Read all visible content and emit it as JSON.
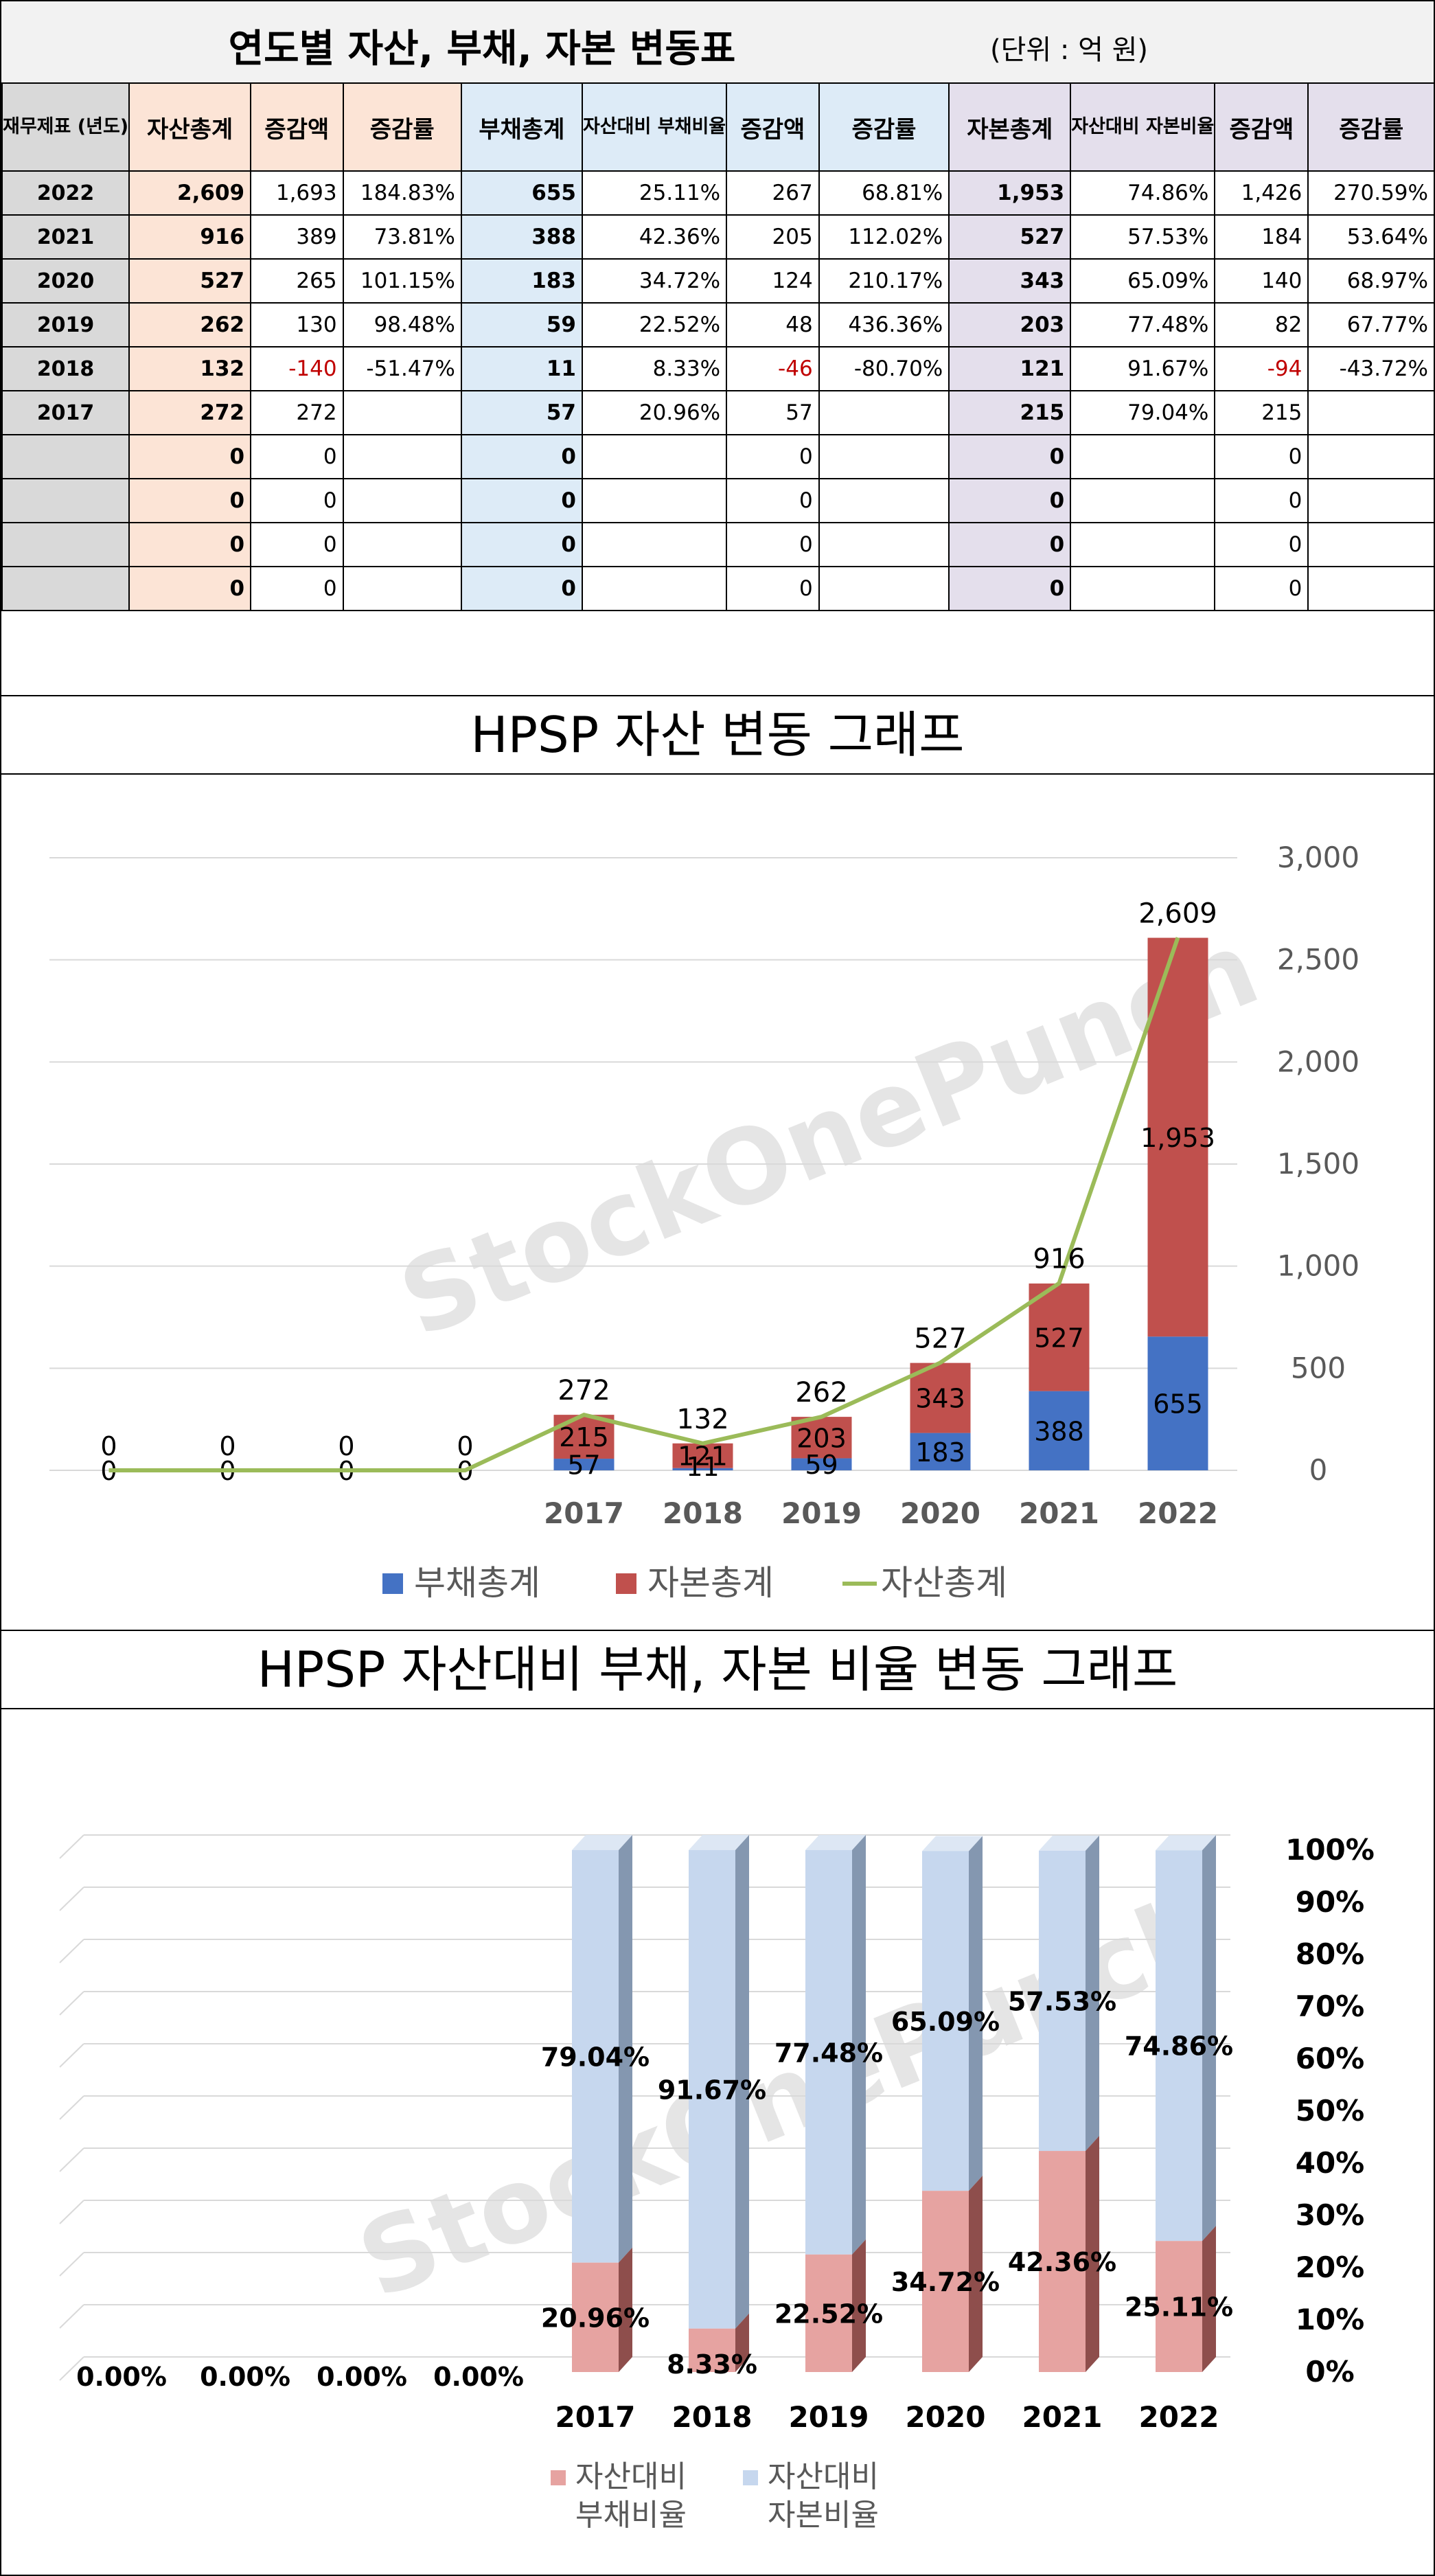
{
  "table": {
    "title": "연도별 자산, 부채, 자본 변동표",
    "unit": "(단위 : 억 원)",
    "headers": [
      "재무제표 (년도)",
      "자산총계",
      "증감액",
      "증감률",
      "부채총계",
      "자산대비 부채비율",
      "증감액",
      "증감률",
      "자본총계",
      "자산대비 자본비율",
      "증감액",
      "증감률"
    ],
    "rows": [
      [
        "2022",
        "2,609",
        "1,693",
        "184.83%",
        "655",
        "25.11%",
        "267",
        "68.81%",
        "1,953",
        "74.86%",
        "1,426",
        "270.59%"
      ],
      [
        "2021",
        "916",
        "389",
        "73.81%",
        "388",
        "42.36%",
        "205",
        "112.02%",
        "527",
        "57.53%",
        "184",
        "53.64%"
      ],
      [
        "2020",
        "527",
        "265",
        "101.15%",
        "183",
        "34.72%",
        "124",
        "210.17%",
        "343",
        "65.09%",
        "140",
        "68.97%"
      ],
      [
        "2019",
        "262",
        "130",
        "98.48%",
        "59",
        "22.52%",
        "48",
        "436.36%",
        "203",
        "77.48%",
        "82",
        "67.77%"
      ],
      [
        "2018",
        "132",
        "-140",
        "-51.47%",
        "11",
        "8.33%",
        "-46",
        "-80.70%",
        "121",
        "91.67%",
        "-94",
        "-43.72%"
      ],
      [
        "2017",
        "272",
        "272",
        "",
        "57",
        "20.96%",
        "57",
        "",
        "215",
        "79.04%",
        "215",
        ""
      ],
      [
        "",
        "0",
        "0",
        "",
        "0",
        "",
        "0",
        "",
        "0",
        "",
        "0",
        ""
      ],
      [
        "",
        "0",
        "0",
        "",
        "0",
        "",
        "0",
        "",
        "0",
        "",
        "0",
        ""
      ],
      [
        "",
        "0",
        "0",
        "",
        "0",
        "",
        "0",
        "",
        "0",
        "",
        "0",
        ""
      ],
      [
        "",
        "0",
        "0",
        "",
        "0",
        "",
        "0",
        "",
        "0",
        "",
        "0",
        ""
      ]
    ]
  },
  "watermark": "StockOnePunch",
  "colors": {
    "liability": "#4472c4",
    "equity": "#c0504d",
    "assets_line": "#9bbb59",
    "liability_ratio": "#e6a3a1",
    "equity_ratio": "#c6d7ee"
  },
  "chart_data": [
    {
      "type": "bar",
      "stacked": true,
      "title": "HPSP 자산 변동 그래프",
      "categories": [
        "",
        "",
        "",
        "",
        "2017",
        "2018",
        "2019",
        "2020",
        "2021",
        "2022"
      ],
      "series": [
        {
          "name": "부채총계",
          "kind": "bar",
          "values": [
            0,
            0,
            0,
            0,
            57,
            11,
            59,
            183,
            388,
            655
          ]
        },
        {
          "name": "자본총계",
          "kind": "bar",
          "values": [
            0,
            0,
            0,
            0,
            215,
            121,
            203,
            343,
            527,
            1953
          ]
        },
        {
          "name": "자산총계",
          "kind": "line",
          "values": [
            0,
            0,
            0,
            0,
            272,
            132,
            262,
            527,
            916,
            2609
          ]
        }
      ],
      "y_ticks": [
        "0",
        "500",
        "1,000",
        "1,500",
        "2,000",
        "2,500",
        "3,000"
      ],
      "ylim": [
        0,
        3000
      ],
      "y_axis_side": "right",
      "legend_position": "bottom",
      "legend": [
        "부채총계",
        "자본총계",
        "자산총계"
      ],
      "grid": true
    },
    {
      "type": "bar",
      "stacked": true,
      "title": "HPSP 자산대비 부채, 자본 비율 변동 그래프",
      "categories": [
        "",
        "",
        "",
        "",
        "2017",
        "2018",
        "2019",
        "2020",
        "2021",
        "2022"
      ],
      "series": [
        {
          "name": "자산대비 부채비율",
          "values": [
            0,
            0,
            0,
            0,
            20.96,
            8.33,
            22.52,
            34.72,
            42.36,
            25.11
          ]
        },
        {
          "name": "자산대비 자본비율",
          "values": [
            0,
            0,
            0,
            0,
            79.04,
            91.67,
            77.48,
            65.09,
            57.53,
            74.86
          ]
        }
      ],
      "bottom_labels": [
        "0.00%",
        "0.00%",
        "0.00%",
        "0.00%",
        "20.96%",
        "8.33%",
        "22.52%",
        "34.72%",
        "42.36%",
        "25.11%"
      ],
      "top_labels": [
        "",
        "",
        "",
        "",
        "79.04%",
        "91.67%",
        "77.48%",
        "65.09%",
        "57.53%",
        "74.86%"
      ],
      "y_ticks": [
        "0%",
        "10%",
        "20%",
        "30%",
        "40%",
        "50%",
        "60%",
        "70%",
        "80%",
        "90%",
        "100%"
      ],
      "ylim": [
        0,
        100
      ],
      "y_axis_side": "right",
      "legend_position": "bottom",
      "legend": [
        "자산대비 부채비율",
        "자산대비 자본비율"
      ],
      "legend_lines": [
        [
          "자산대비",
          "부채비율"
        ],
        [
          "자산대비",
          "자본비율"
        ]
      ],
      "grid": true,
      "three_d": true
    }
  ]
}
